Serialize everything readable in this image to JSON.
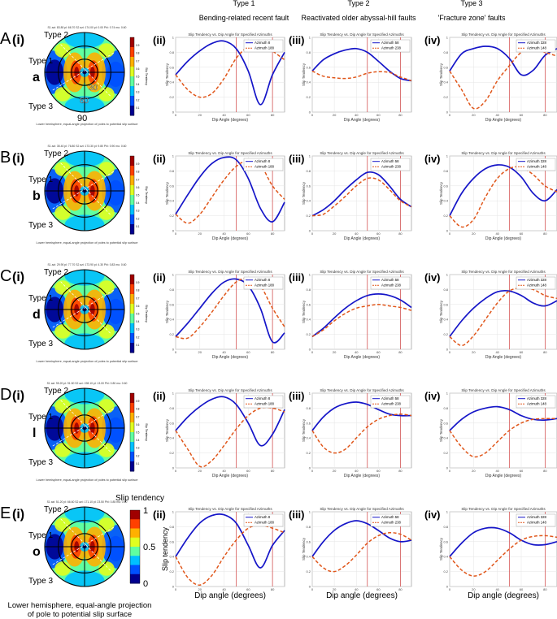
{
  "header": {
    "type_labels": [
      "Type 1",
      "Type 2",
      "Type 3"
    ],
    "descriptions": [
      "Bending-related recent fault",
      "Reactivated older abyssal-hill faults",
      "'Fracture zone' faults"
    ]
  },
  "stereonet": {
    "type_labels": [
      "Type 2",
      "Type 1",
      "Type 3"
    ],
    "caption_small": "Lower hemisphere, equal-angle projection of poles to potential slip surface",
    "caption_large_line1": "Lower hemisphere, equal-angle projection",
    "caption_large_line2": "of pole to potential slip surface",
    "ring_labels": [
      "30",
      "60",
      "90"
    ],
    "colorbar_ticks_small": [
      "0.9",
      "0.8",
      "0.7",
      "0.6",
      "0.5",
      "0.4",
      "0.3",
      "0.2",
      "0.1"
    ],
    "colorbar_label_small": "Slip Tendency",
    "colorbar_title_large": "Slip tendency",
    "colorbar_ticks_large": [
      "1",
      "0.5",
      "0"
    ],
    "colors": [
      "#00008f",
      "#0050ff",
      "#00c0ff",
      "#60ffa0",
      "#e0ff20",
      "#ffb000",
      "#ff4000",
      "#a00000"
    ]
  },
  "rows": [
    {
      "letter": "A",
      "roman": "(i)",
      "label": "a",
      "stress_header": "S1 azi: 83.80 pl: 66.70 S2 azi: 174.00 pl: 0.00 Phi: 0.74 mu: 0.60"
    },
    {
      "letter": "B",
      "roman": "(i)",
      "label": "b",
      "stress_header": "S1 azi: 35.40 pl: 76.80 S2 azi: 173.30 pl: 9.80 Phi: 0.90 mu: 0.60"
    },
    {
      "letter": "C",
      "roman": "(i)",
      "label": "d",
      "stress_header": "S1 azi: 29.90 pl: 77.70 S2 azi: 173.90 pl: 4.30 Phi: 0.83 mu: 0.60"
    },
    {
      "letter": "D",
      "roman": "(i)",
      "label": "l",
      "stress_header": "S1 azi: 95.20 pl: 91.50 S2 azi: 198.10 pl: 13.00 Phi: 0.80 mu: 0.60"
    },
    {
      "letter": "E",
      "roman": "(i)",
      "label": "o",
      "stress_header": "S1 azi: 51.20 pl: 66.60 S2 azi: 171.10 pl: 23.50 Phi: 0.85 mu: 0.60"
    }
  ],
  "panel_labels": [
    "(ii)",
    "(iii)",
    "(iv)"
  ],
  "chart_data": {
    "type": "line",
    "title": "Slip Tendency vs. Dip Angle for Specified Azimuths",
    "xlabel_small": "Dip Angle (degrees)",
    "ylabel_small": "Slip Tendency",
    "xlabel_large": "Dip angle (degrees)",
    "ylabel_large": "Slip tendency",
    "x": [
      0,
      10,
      20,
      30,
      40,
      50,
      60,
      70,
      80,
      90
    ],
    "xlim": [
      0,
      90
    ],
    "ylim": [
      0,
      1
    ],
    "xticks": [
      "0",
      "20",
      "40",
      "60",
      "80"
    ],
    "yticks": [
      "0",
      "0.2",
      "0.4",
      "0.6",
      "0.8",
      "1"
    ],
    "vlines": [
      50,
      80
    ],
    "panels": [
      [
        {
          "legend": [
            "Azimuth 8",
            "Azimuth 188"
          ],
          "series": [
            {
              "name": "Azimuth 8",
              "values": [
                0.5,
                0.68,
                0.82,
                0.92,
                0.95,
                0.85,
                0.55,
                0.1,
                0.5,
                0.8
              ]
            },
            {
              "name": "Azimuth 188",
              "values": [
                0.5,
                0.3,
                0.2,
                0.25,
                0.45,
                0.72,
                0.88,
                0.96,
                0.82,
                0.7
              ]
            }
          ]
        },
        {
          "legend": [
            "Azimuth 58",
            "Azimuth 238"
          ],
          "series": [
            {
              "name": "Azimuth 58",
              "values": [
                0.55,
                0.7,
                0.78,
                0.83,
                0.85,
                0.8,
                0.68,
                0.55,
                0.45,
                0.42
              ]
            },
            {
              "name": "Azimuth 238",
              "values": [
                0.55,
                0.48,
                0.46,
                0.45,
                0.47,
                0.52,
                0.54,
                0.53,
                0.47,
                0.42
              ]
            }
          ]
        },
        {
          "legend": [
            "Azimuth 328",
            "Azimuth 148"
          ],
          "series": [
            {
              "name": "Azimuth 328",
              "values": [
                0.55,
                0.78,
                0.85,
                0.88,
                0.85,
                0.72,
                0.5,
                0.56,
                0.76,
                0.85
              ]
            },
            {
              "name": "Azimuth 148",
              "values": [
                0.55,
                0.3,
                0.05,
                0.15,
                0.42,
                0.62,
                0.8,
                0.86,
                0.8,
                0.75
              ]
            }
          ]
        }
      ],
      [
        {
          "legend": [
            "Azimuth 8",
            "Azimuth 188"
          ],
          "series": [
            {
              "name": "Azimuth 8",
              "values": [
                0.22,
                0.48,
                0.72,
                0.9,
                0.98,
                0.95,
                0.7,
                0.3,
                0.12,
                0.38
              ]
            },
            {
              "name": "Azimuth 188",
              "values": [
                0.22,
                0.1,
                0.22,
                0.45,
                0.68,
                0.86,
                0.94,
                0.88,
                0.6,
                0.42
              ]
            }
          ]
        },
        {
          "legend": [
            "Azimuth 58",
            "Azimuth 238"
          ],
          "series": [
            {
              "name": "Azimuth 58",
              "values": [
                0.2,
                0.28,
                0.4,
                0.55,
                0.68,
                0.78,
                0.75,
                0.6,
                0.42,
                0.32
              ]
            },
            {
              "name": "Azimuth 238",
              "values": [
                0.2,
                0.22,
                0.33,
                0.46,
                0.6,
                0.7,
                0.68,
                0.55,
                0.4,
                0.32
              ]
            }
          ]
        },
        {
          "legend": [
            "Azimuth 328",
            "Azimuth 148"
          ],
          "series": [
            {
              "name": "Azimuth 328",
              "values": [
                0.2,
                0.5,
                0.7,
                0.83,
                0.88,
                0.85,
                0.72,
                0.5,
                0.4,
                0.55
              ]
            },
            {
              "name": "Azimuth 148",
              "values": [
                0.2,
                0.05,
                0.15,
                0.45,
                0.7,
                0.83,
                0.85,
                0.75,
                0.6,
                0.52
              ]
            }
          ]
        }
      ],
      [
        {
          "legend": [
            "Azimuth 8",
            "Azimuth 188"
          ],
          "series": [
            {
              "name": "Azimuth 8",
              "values": [
                0.17,
                0.35,
                0.55,
                0.75,
                0.9,
                0.94,
                0.85,
                0.55,
                0.1,
                0.22
              ]
            },
            {
              "name": "Azimuth 188",
              "values": [
                0.17,
                0.15,
                0.3,
                0.5,
                0.72,
                0.9,
                0.95,
                0.85,
                0.55,
                0.3
              ]
            }
          ]
        },
        {
          "legend": [
            "Azimuth 58",
            "Azimuth 238"
          ],
          "series": [
            {
              "name": "Azimuth 58",
              "values": [
                0.17,
                0.28,
                0.42,
                0.55,
                0.65,
                0.72,
                0.74,
                0.72,
                0.66,
                0.56
              ]
            },
            {
              "name": "Azimuth 238",
              "values": [
                0.17,
                0.26,
                0.38,
                0.48,
                0.55,
                0.58,
                0.6,
                0.58,
                0.56,
                0.52
              ]
            }
          ]
        },
        {
          "legend": [
            "Azimuth 328",
            "Azimuth 148"
          ],
          "series": [
            {
              "name": "Azimuth 328",
              "values": [
                0.17,
                0.38,
                0.55,
                0.68,
                0.77,
                0.78,
                0.72,
                0.62,
                0.58,
                0.65
              ]
            },
            {
              "name": "Azimuth 148",
              "values": [
                0.17,
                0.05,
                0.18,
                0.4,
                0.62,
                0.78,
                0.82,
                0.8,
                0.72,
                0.68
              ]
            }
          ]
        }
      ],
      [
        {
          "legend": [
            "Azimuth 8",
            "Azimuth 188"
          ],
          "series": [
            {
              "name": "Azimuth 8",
              "values": [
                0.5,
                0.68,
                0.82,
                0.92,
                0.95,
                0.85,
                0.6,
                0.3,
                0.45,
                0.78
              ]
            },
            {
              "name": "Azimuth 188",
              "values": [
                0.5,
                0.25,
                0.02,
                0.1,
                0.3,
                0.52,
                0.7,
                0.8,
                0.8,
                0.75
              ]
            }
          ]
        },
        {
          "legend": [
            "Azimuth 58",
            "Azimuth 238"
          ],
          "series": [
            {
              "name": "Azimuth 58",
              "values": [
                0.5,
                0.68,
                0.8,
                0.86,
                0.88,
                0.85,
                0.78,
                0.72,
                0.7,
                0.7
              ]
            },
            {
              "name": "Azimuth 238",
              "values": [
                0.5,
                0.28,
                0.2,
                0.25,
                0.4,
                0.55,
                0.65,
                0.7,
                0.72,
                0.7
              ]
            }
          ]
        },
        {
          "legend": [
            "Azimuth 328",
            "Azimuth 148"
          ],
          "series": [
            {
              "name": "Azimuth 328",
              "values": [
                0.5,
                0.65,
                0.75,
                0.8,
                0.82,
                0.78,
                0.7,
                0.65,
                0.64,
                0.66
              ]
            },
            {
              "name": "Azimuth 148",
              "values": [
                0.5,
                0.28,
                0.15,
                0.2,
                0.35,
                0.5,
                0.6,
                0.65,
                0.66,
                0.66
              ]
            }
          ]
        }
      ],
      [
        {
          "legend": [
            "Azimuth 8",
            "Azimuth 188"
          ],
          "series": [
            {
              "name": "Azimuth 8",
              "values": [
                0.4,
                0.65,
                0.85,
                0.95,
                0.96,
                0.85,
                0.55,
                0.25,
                0.55,
                0.75
              ]
            },
            {
              "name": "Azimuth 188",
              "values": [
                0.4,
                0.12,
                0.02,
                0.15,
                0.4,
                0.62,
                0.78,
                0.82,
                0.78,
                0.72
              ]
            }
          ]
        },
        {
          "legend": [
            "Azimuth 58",
            "Azimuth 238"
          ],
          "series": [
            {
              "name": "Azimuth 58",
              "values": [
                0.4,
                0.6,
                0.75,
                0.84,
                0.88,
                0.84,
                0.75,
                0.65,
                0.6,
                0.62
              ]
            },
            {
              "name": "Azimuth 238",
              "values": [
                0.4,
                0.25,
                0.2,
                0.28,
                0.42,
                0.58,
                0.68,
                0.72,
                0.7,
                0.62
              ]
            }
          ]
        },
        {
          "legend": [
            "Azimuth 328",
            "Azimuth 148"
          ],
          "series": [
            {
              "name": "Azimuth 328",
              "values": [
                0.4,
                0.58,
                0.72,
                0.78,
                0.78,
                0.72,
                0.62,
                0.56,
                0.56,
                0.6
              ]
            },
            {
              "name": "Azimuth 148",
              "values": [
                0.4,
                0.22,
                0.14,
                0.2,
                0.35,
                0.5,
                0.62,
                0.67,
                0.68,
                0.66
              ]
            }
          ]
        }
      ]
    ]
  }
}
